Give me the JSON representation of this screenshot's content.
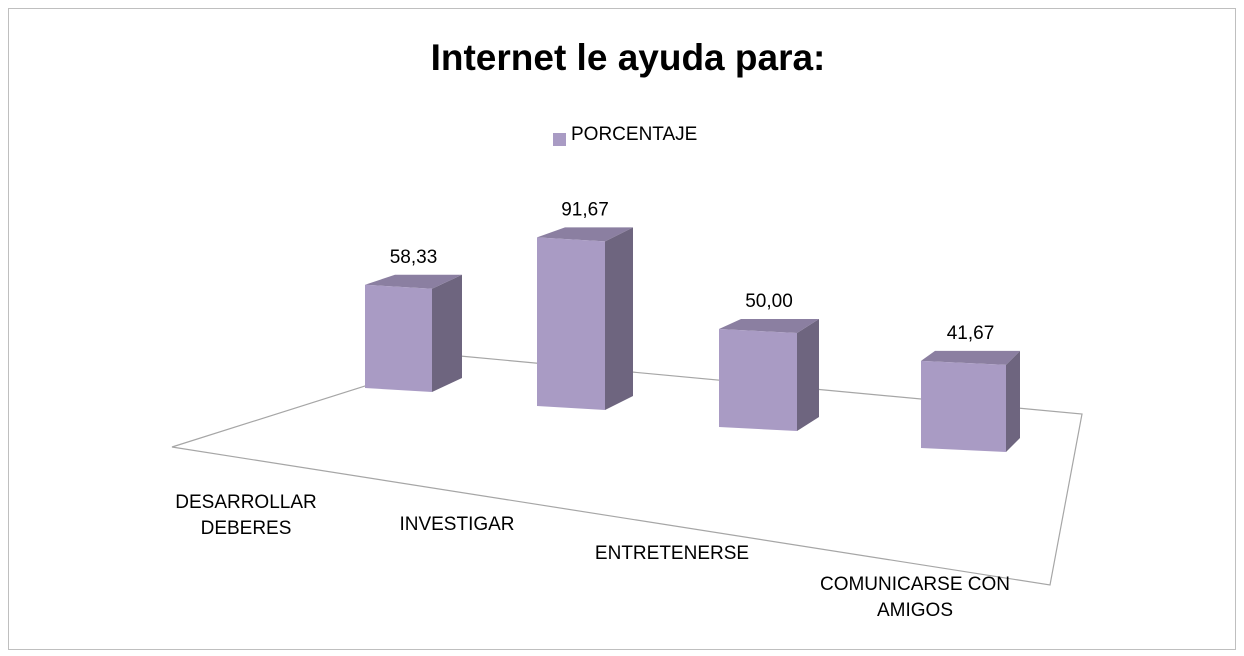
{
  "chart_data": {
    "type": "bar3d",
    "title": "Internet le ayuda para:",
    "categories": [
      "DESARROLLAR DEBERES",
      "INVESTIGAR",
      "ENTRETENERSE",
      "COMUNICARSE CON AMIGOS"
    ],
    "series": [
      {
        "name": "PORCENTAJE",
        "color": "#a99bc4",
        "values": [
          58.33,
          91.67,
          50.0,
          41.67
        ],
        "value_labels": [
          "58,33",
          "91,67",
          "50,00",
          "41,67"
        ]
      }
    ],
    "legend": "top"
  }
}
